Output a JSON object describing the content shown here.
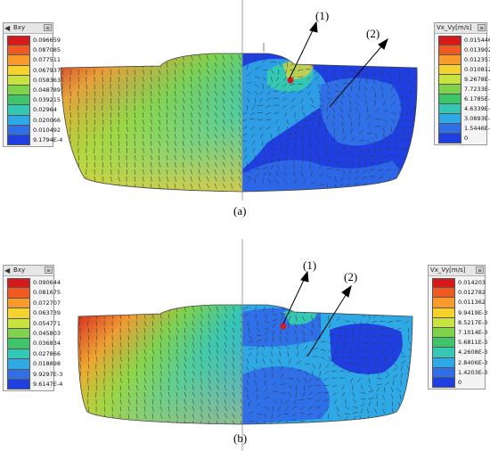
{
  "panels": [
    {
      "caption": "(a)",
      "left_legend": {
        "title": "Bxy",
        "values": [
          "0.096659",
          "0.087085",
          "0.077511",
          "0.067937",
          "0.058363",
          "0.048789",
          "0.039215",
          "0.02964",
          "0.020066",
          "0.010492",
          "9.1794E-4"
        ]
      },
      "right_legend": {
        "title": "Vx_Vy[m/s]",
        "values": [
          "0.015446",
          "0.013902",
          "0.012357",
          "0.010812",
          "9.2678E-3",
          "7.7233E-3",
          "6.1785E-3",
          "4.6339E-3",
          "3.0893E-3",
          "1.5446E-3",
          "0"
        ]
      },
      "markers": [
        "(1)",
        "(2)"
      ]
    },
    {
      "caption": "(b)",
      "left_legend": {
        "title": "Bxy",
        "values": [
          "0.090644",
          "0.081675",
          "0.072707",
          "0.063739",
          "0.054771",
          "0.045803",
          "0.036834",
          "0.027866",
          "0.018898",
          "9.9297E-3",
          "9.6147E-4"
        ]
      },
      "right_legend": {
        "title": "Vx_Vy[m/s]",
        "values": [
          "0.014203",
          "0.012782",
          "0.011362",
          "9.9419E-3",
          "8.5217E-3",
          "7.1014E-3",
          "5.6811E-3",
          "4.2608E-3",
          "2.8406E-3",
          "1.4203E-3",
          "0"
        ]
      },
      "markers": [
        "(1)",
        "(2)"
      ]
    }
  ],
  "colors": {
    "scale": [
      "#d7191c",
      "#f05a20",
      "#f99a2b",
      "#f5d22e",
      "#c8e240",
      "#7fd34a",
      "#3fc46a",
      "#33c7b4",
      "#2fa9e6",
      "#2f6fe8",
      "#1f3fe0"
    ]
  }
}
